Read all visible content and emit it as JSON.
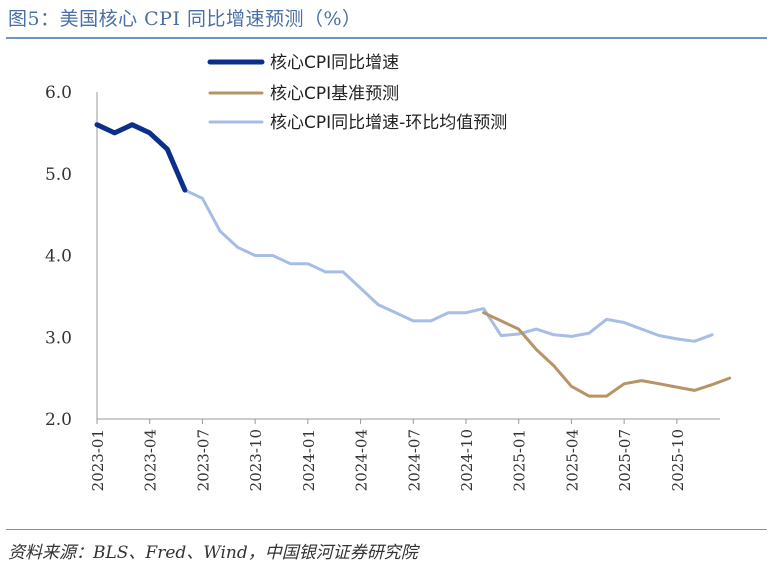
{
  "title": "图5：美国核心 CPI 同比增速预测（%）",
  "source": "资料来源：BLS、Fred、Wind，中国银河证券研究院",
  "colors": {
    "actual": "#0d2f8c",
    "baseline": "#b59466",
    "mom_avg": "#a7bde6",
    "accent": "#6f93c6"
  },
  "chart_data": {
    "type": "line",
    "ylim": [
      2.0,
      6.0
    ],
    "yticks": [
      "6.0",
      "5.0",
      "4.0",
      "3.0",
      "2.0"
    ],
    "xticks": [
      "2023-01",
      "2023-04",
      "2023-07",
      "2023-10",
      "2024-01",
      "2024-04",
      "2024-07",
      "2024-10",
      "2025-01",
      "2025-04",
      "2025-07",
      "2025-10"
    ],
    "series": [
      {
        "name": "核心CPI同比增速",
        "color": "#0d2f8c",
        "start": 0,
        "values": [
          5.6,
          5.5,
          5.6,
          5.5,
          5.3,
          4.8
        ]
      },
      {
        "name": "核心CPI基准预测",
        "color": "#b59466",
        "start": 22,
        "values": [
          3.3,
          3.2,
          3.1,
          2.85,
          2.65,
          2.4,
          2.28,
          2.28,
          2.43,
          2.47,
          2.43,
          2.39,
          2.35,
          2.42,
          2.5
        ]
      },
      {
        "name": "核心CPI同比增速-环比均值预测",
        "color": "#a7bde6",
        "start": 5,
        "values": [
          4.8,
          4.7,
          4.3,
          4.1,
          4.0,
          4.0,
          3.9,
          3.9,
          3.8,
          3.8,
          3.6,
          3.4,
          3.3,
          3.2,
          3.2,
          3.3,
          3.3,
          3.35,
          3.02,
          3.04,
          3.1,
          3.03,
          3.01,
          3.05,
          3.22,
          3.18,
          3.1,
          3.02,
          2.98,
          2.95,
          3.03
        ]
      }
    ]
  }
}
